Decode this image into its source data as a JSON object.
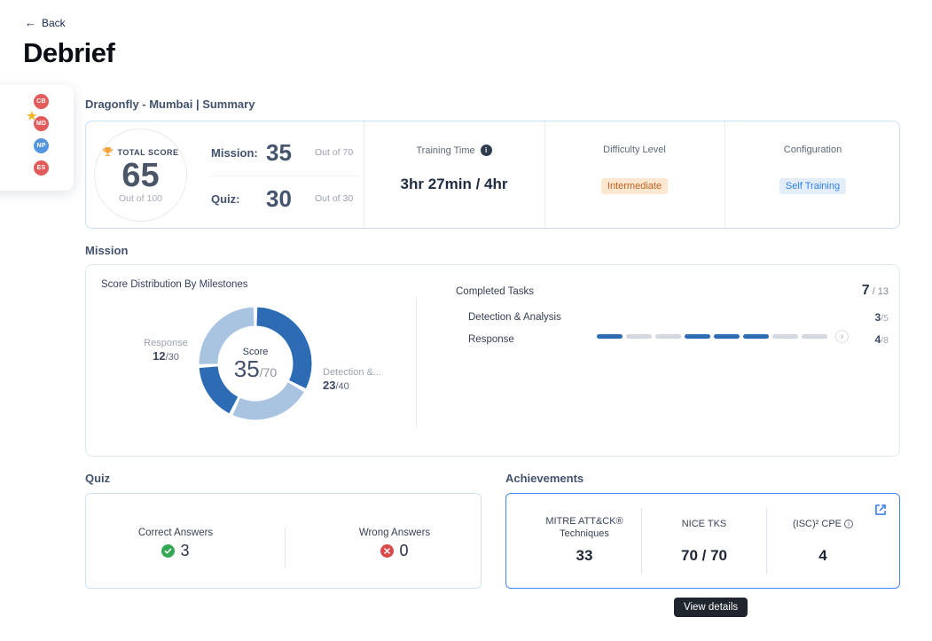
{
  "page": {
    "back_icon": "←",
    "back_label": "Back",
    "title": "Debrief"
  },
  "participants": [
    {
      "initials": "CB",
      "color": "#e25c5c",
      "starred": false
    },
    {
      "initials": "MD",
      "color": "#e25c5c",
      "starred": true,
      "star_icon": "★"
    },
    {
      "initials": "NP",
      "color": "#5596e0",
      "starred": false
    },
    {
      "initials": "ES",
      "color": "#e25c5c",
      "starred": false
    }
  ],
  "summary": {
    "header": "Dragonfly - Mumbai | Summary",
    "total_score": {
      "label": "TOTAL SCORE",
      "value": "65",
      "sub": "Out of 100"
    },
    "mission_row": {
      "label": "Mission:",
      "value": "35",
      "sub": "Out of 70"
    },
    "quiz_row": {
      "label": "Quiz:",
      "value": "30",
      "sub": "Out of 30"
    },
    "training_time": {
      "label": "Training Time",
      "info_icon": "i",
      "value": "3hr 27min / 4hr"
    },
    "difficulty": {
      "label": "Difficulty Level",
      "value": "Intermediate",
      "badge_bg": "#fde7d1",
      "badge_color": "#bf5f1d"
    },
    "configuration": {
      "label": "Configuration",
      "value": "Self Training",
      "badge_bg": "#e4eefb",
      "badge_color": "#2f80ed"
    }
  },
  "mission": {
    "section_label": "Mission",
    "completed_tasks": {
      "label": "Completed Tasks",
      "num": "7",
      "den": " / 13",
      "rows": [
        {
          "label": "Detection & Analysis",
          "num": "3",
          "den": "/5"
        },
        {
          "label": "Response",
          "num": "4",
          "den": "/8"
        }
      ],
      "bar_pattern": [
        1,
        0,
        0,
        1,
        1,
        1,
        0,
        0
      ],
      "bar_filled_color": "#2d6cb5",
      "bar_empty_color": "#d3d8df",
      "more_icon": "›"
    }
  },
  "quiz": {
    "section_label": "Quiz",
    "correct": {
      "label": "Correct Answers",
      "value": "3",
      "icon_color": "#34a853"
    },
    "wrong": {
      "label": "Wrong Answers",
      "value": "0",
      "icon_color": "#d94a4a"
    }
  },
  "achievements": {
    "section_label": "Achievements",
    "items": [
      {
        "label": "MITRE ATT&CK® Techniques",
        "value": "33"
      },
      {
        "label": "NICE TKS",
        "value": "70 / 70"
      },
      {
        "label": "(ISC)² CPE",
        "value": "4"
      }
    ],
    "border_color": "#4285f4"
  },
  "tooltip": {
    "label": "View details"
  },
  "chart_data": {
    "type": "donut",
    "title": "Score Distribution By Milestones",
    "center": {
      "label": "Score",
      "num": "35",
      "den": "/70"
    },
    "labels": [
      {
        "name": "Response",
        "num": "12",
        "den": "/30",
        "position": "left"
      },
      {
        "name": "Detection &...",
        "num": "23",
        "den": "/40",
        "position": "right"
      }
    ],
    "segments": [
      {
        "name": "Detection & Analysis achieved",
        "value": 23,
        "color": "#2d6cb5"
      },
      {
        "name": "Detection & Analysis remaining",
        "value": 17,
        "color": "#a9c4e1"
      },
      {
        "name": "Response achieved",
        "value": 12,
        "color": "#2d6cb5"
      },
      {
        "name": "Response remaining",
        "value": 18,
        "color": "#a9c4e1"
      }
    ],
    "total": 70,
    "start_angle_deg": 0,
    "gap_deg": 4
  }
}
